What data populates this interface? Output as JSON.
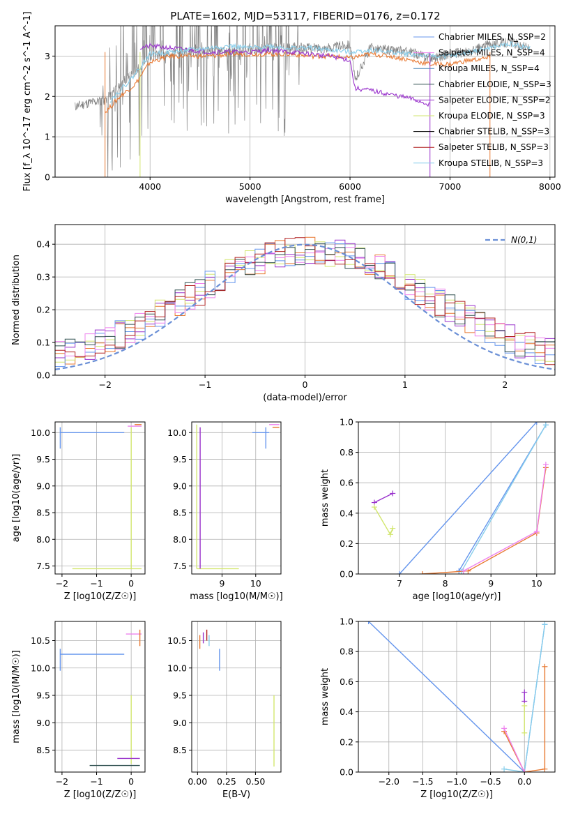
{
  "figure": {
    "title": "PLATE=1602, MJD=53117, FIBERID=0176, z=0.172"
  },
  "chart_data": [
    {
      "id": "spectrum",
      "type": "line",
      "title": "PLATE=1602, MJD=53117, FIBERID=0176, z=0.172",
      "xlabel": "wavelength [Angstrom, rest frame]",
      "ylabel": "Flux [f_λ 10^-17 erg cm^-2 s^-1 A^-1]",
      "xlim": [
        3050,
        8050
      ],
      "ylim": [
        0,
        3.75
      ],
      "xticks": [
        4000,
        5000,
        6000,
        7000,
        8000
      ],
      "yticks": [
        0,
        1,
        2,
        3
      ],
      "grid": true,
      "legend_position": "top-right",
      "legend": [
        {
          "label": "Chabrier MILES, N_SSP=2",
          "color": "#6495ed"
        },
        {
          "label": "Salpeter MILES, N_SSP=4",
          "color": "#ee82ee"
        },
        {
          "label": "Kroupa MILES, N_SSP=4",
          "color": "#4682b4"
        },
        {
          "label": "Chabrier ELODIE, N_SSP=3",
          "color": "#2f4f4f"
        },
        {
          "label": "Salpeter ELODIE, N_SSP=2",
          "color": "#9932cc"
        },
        {
          "label": "Kroupa ELODIE, N_SSP=3",
          "color": "#d2e66e"
        },
        {
          "label": "Chabrier STELIB, N_SSP=3",
          "color": "#000000"
        },
        {
          "label": "Salpeter STELIB, N_SSP=3",
          "color": "#b22222"
        },
        {
          "label": "Kroupa STELIB, N_SSP=3",
          "color": "#87ceeb"
        }
      ],
      "series": [
        {
          "name": "data",
          "color": "#808080",
          "x": [
            3250,
            3400,
            3550,
            3700,
            3850,
            4000,
            4200,
            4400,
            4600,
            4800,
            5000,
            5200,
            5400,
            5600,
            5800,
            6000,
            6050,
            6200,
            6400,
            6600,
            6800,
            7000,
            7200,
            7400,
            7600,
            7800
          ],
          "y": [
            1.75,
            1.85,
            1.9,
            2.3,
            2.6,
            3.0,
            3.05,
            3.1,
            3.15,
            3.1,
            3.15,
            3.2,
            3.2,
            3.2,
            3.2,
            3.3,
            2.4,
            3.2,
            3.15,
            3.1,
            2.95,
            3.05,
            3.1,
            3.3,
            3.35,
            3.2
          ]
        },
        {
          "name": "model MILES",
          "color": "#e87830",
          "x": [
            3550,
            3700,
            3850,
            4000,
            4200,
            4400,
            4600,
            4800,
            5000,
            5200,
            5400,
            5600,
            5800,
            6000,
            6200,
            6400,
            6600,
            6800,
            7000,
            7200,
            7400
          ],
          "y": [
            1.6,
            2.0,
            2.3,
            2.85,
            3.0,
            3.0,
            3.0,
            3.05,
            3.05,
            3.05,
            3.05,
            3.0,
            3.0,
            2.95,
            3.05,
            3.0,
            2.9,
            2.8,
            2.8,
            2.9,
            2.95
          ]
        },
        {
          "name": "model ELODIE",
          "color": "#9932cc",
          "x": [
            3900,
            4000,
            4200,
            4400,
            4600,
            4800,
            5000,
            5200,
            5400,
            5600,
            5800,
            6000,
            6050,
            6200,
            6400,
            6600,
            6800
          ],
          "y": [
            3.2,
            3.25,
            3.2,
            3.15,
            3.1,
            3.1,
            3.1,
            3.15,
            3.1,
            3.05,
            3.0,
            2.9,
            2.2,
            2.15,
            2.05,
            1.95,
            1.8
          ]
        },
        {
          "name": "model STELIB",
          "color": "#87ceeb",
          "x": [
            3600,
            3800,
            4000,
            4200,
            4400,
            4600,
            4800,
            5000,
            5200,
            5400,
            5600,
            5800,
            6000,
            6200,
            6400,
            6600,
            6800,
            7000,
            7200,
            7400,
            7600,
            7800
          ],
          "y": [
            1.9,
            2.4,
            3.05,
            3.1,
            3.15,
            3.2,
            3.25,
            3.2,
            3.25,
            3.2,
            3.2,
            3.15,
            3.1,
            3.15,
            3.1,
            3.05,
            3.0,
            3.0,
            3.1,
            3.2,
            3.3,
            3.2
          ]
        }
      ]
    },
    {
      "id": "residuals",
      "type": "area",
      "xlabel": "(data-model)/error",
      "ylabel": "Normed distribution",
      "xlim": [
        -2.5,
        2.5
      ],
      "ylim": [
        0,
        0.46
      ],
      "xticks": [
        -2,
        -1,
        0,
        1,
        2
      ],
      "yticks": [
        0.0,
        0.1,
        0.2,
        0.3,
        0.4
      ],
      "grid": true,
      "legend_position": "top-right",
      "legend": [
        {
          "label": "N(0,1)",
          "color": "#6a8fd6",
          "style": "dashed"
        }
      ],
      "histograms": [
        {
          "color": "#e87830",
          "seed": 1
        },
        {
          "color": "#9932cc",
          "seed": 2
        },
        {
          "color": "#d2e66e",
          "seed": 3
        },
        {
          "color": "#6495ed",
          "seed": 4
        },
        {
          "color": "#ee82ee",
          "seed": 5
        },
        {
          "color": "#2f4f4f",
          "seed": 6
        },
        {
          "color": "#b22222",
          "seed": 7
        }
      ]
    },
    {
      "id": "age_vs_Z",
      "type": "scatter",
      "xlabel": "Z [log10(Z/Z☉)]",
      "ylabel": "age  [log10(age/yr)]",
      "xlim": [
        -2.2,
        0.4
      ],
      "ylim": [
        7.35,
        10.2
      ],
      "xticks": [
        -2,
        -1,
        0
      ],
      "yticks": [
        7.5,
        8.0,
        8.5,
        9.0,
        9.5,
        10.0
      ],
      "grid": true,
      "series": [
        {
          "color": "#6495ed",
          "x": [
            -2.05,
            -0.2
          ],
          "y": [
            10.0,
            10.0
          ]
        },
        {
          "color": "#6495ed",
          "x": [
            -2.05,
            -2.05
          ],
          "y": [
            9.7,
            10.1
          ]
        },
        {
          "color": "#d2e66e",
          "x": [
            -1.7,
            0.3
          ],
          "y": [
            7.45,
            7.45
          ]
        },
        {
          "color": "#d2e66e",
          "x": [
            0.0,
            0.0
          ],
          "y": [
            7.45,
            10.1
          ]
        },
        {
          "color": "#e87830",
          "x": [
            0.1,
            0.3
          ],
          "y": [
            10.15,
            10.15
          ]
        },
        {
          "color": "#ee82ee",
          "x": [
            -0.1,
            0.3
          ],
          "y": [
            10.12,
            10.12
          ]
        }
      ]
    },
    {
      "id": "age_vs_mass",
      "type": "scatter",
      "xlabel": "mass [log10(M/M☉)]",
      "ylabel": "",
      "xlim": [
        8.1,
        10.75
      ],
      "ylim": [
        7.35,
        10.2
      ],
      "xticks": [
        9,
        10
      ],
      "yticks": [
        7.5,
        8.0,
        8.5,
        9.0,
        9.5,
        10.0
      ],
      "grid": true,
      "series": [
        {
          "color": "#6495ed",
          "x": [
            9.9,
            10.4
          ],
          "y": [
            10.0,
            10.0
          ]
        },
        {
          "color": "#6495ed",
          "x": [
            10.3,
            10.3
          ],
          "y": [
            9.7,
            10.1
          ]
        },
        {
          "color": "#d2e66e",
          "x": [
            8.25,
            9.5
          ],
          "y": [
            7.45,
            7.45
          ]
        },
        {
          "color": "#d2e66e",
          "x": [
            8.25,
            8.25
          ],
          "y": [
            7.45,
            10.15
          ]
        },
        {
          "color": "#9932cc",
          "x": [
            8.35,
            8.35
          ],
          "y": [
            7.45,
            10.1
          ]
        },
        {
          "color": "#e87830",
          "x": [
            10.5,
            10.7
          ],
          "y": [
            10.1,
            10.1
          ]
        },
        {
          "color": "#ee82ee",
          "x": [
            10.4,
            10.7
          ],
          "y": [
            10.15,
            10.15
          ]
        }
      ]
    },
    {
      "id": "mass_weight_vs_age",
      "type": "line",
      "xlabel": "age  [log10(age/yr)]",
      "ylabel": "mass weight",
      "xlim": [
        6.1,
        10.4
      ],
      "ylim": [
        0,
        1
      ],
      "xticks": [
        7,
        8,
        9,
        10
      ],
      "yticks": [
        0.0,
        0.2,
        0.4,
        0.6,
        0.8,
        1.0
      ],
      "grid": true,
      "series": [
        {
          "color": "#6495ed",
          "x": [
            7.0,
            10.0
          ],
          "y": [
            0.0,
            1.0
          ]
        },
        {
          "color": "#6495ed",
          "x": [
            8.3,
            10.2
          ],
          "y": [
            0.02,
            0.98
          ]
        },
        {
          "color": "#87ceeb",
          "x": [
            8.35,
            10.2
          ],
          "y": [
            0.015,
            0.98
          ]
        },
        {
          "color": "#e87830",
          "x": [
            7.5,
            8.5,
            10.0,
            10.2
          ],
          "y": [
            0.0,
            0.02,
            0.27,
            0.7
          ]
        },
        {
          "color": "#ee82ee",
          "x": [
            8.4,
            10.0,
            10.2
          ],
          "y": [
            0.02,
            0.28,
            0.72
          ]
        },
        {
          "color": "#9932cc",
          "x": [
            6.45,
            6.85
          ],
          "y": [
            0.47,
            0.53
          ]
        },
        {
          "color": "#d2e66e",
          "x": [
            6.45,
            6.8,
            6.85
          ],
          "y": [
            0.44,
            0.26,
            0.3
          ]
        }
      ]
    },
    {
      "id": "mass_vs_Z",
      "type": "scatter",
      "xlabel": "Z [log10(Z/Z☉)]",
      "ylabel": "mass [log10(M/M☉)]",
      "xlim": [
        -2.2,
        0.4
      ],
      "ylim": [
        8.1,
        10.85
      ],
      "xticks": [
        -2,
        -1,
        0
      ],
      "yticks": [
        8.5,
        9.0,
        9.5,
        10.0,
        10.5
      ],
      "grid": true,
      "series": [
        {
          "color": "#6495ed",
          "x": [
            -2.05,
            -0.2
          ],
          "y": [
            10.25,
            10.25
          ]
        },
        {
          "color": "#6495ed",
          "x": [
            -2.05,
            -2.05
          ],
          "y": [
            9.95,
            10.35
          ]
        },
        {
          "color": "#d2e66e",
          "x": [
            0.0,
            0.0
          ],
          "y": [
            8.25,
            9.5
          ]
        },
        {
          "color": "#2f4f4f",
          "x": [
            -1.2,
            0.25
          ],
          "y": [
            8.22,
            8.22
          ]
        },
        {
          "color": "#9932cc",
          "x": [
            -0.4,
            0.25
          ],
          "y": [
            8.35,
            8.35
          ]
        },
        {
          "color": "#ee82ee",
          "x": [
            -0.15,
            0.3
          ],
          "y": [
            10.62,
            10.62
          ]
        },
        {
          "color": "#e87830",
          "x": [
            0.25,
            0.25
          ],
          "y": [
            10.4,
            10.7
          ]
        }
      ]
    },
    {
      "id": "mass_vs_ebv",
      "type": "scatter",
      "xlabel": "E(B-V)",
      "ylabel": "",
      "xlim": [
        -0.05,
        0.72
      ],
      "ylim": [
        8.1,
        10.85
      ],
      "xticks": [
        0.0,
        0.25,
        0.5
      ],
      "yticks": [
        8.5,
        9.0,
        9.5,
        10.0,
        10.5
      ],
      "grid": true,
      "series": [
        {
          "color": "#6495ed",
          "x": [
            0.19,
            0.19
          ],
          "y": [
            9.95,
            10.35
          ]
        },
        {
          "color": "#d2e66e",
          "x": [
            0.66,
            0.66
          ],
          "y": [
            8.2,
            9.5
          ]
        },
        {
          "color": "#e87830",
          "x": [
            0.02,
            0.02
          ],
          "y": [
            10.35,
            10.6
          ]
        },
        {
          "color": "#9932cc",
          "x": [
            0.05,
            0.05
          ],
          "y": [
            10.45,
            10.65
          ]
        },
        {
          "color": "#b22222",
          "x": [
            0.08,
            0.08
          ],
          "y": [
            10.5,
            10.7
          ]
        },
        {
          "color": "#87ceeb",
          "x": [
            0.1,
            0.1
          ],
          "y": [
            10.4,
            10.6
          ]
        }
      ]
    },
    {
      "id": "mass_weight_vs_Z",
      "type": "line",
      "xlabel": "Z [log10(Z/Z☉)]",
      "ylabel": "mass weight",
      "xlim": [
        -2.45,
        0.45
      ],
      "ylim": [
        0,
        1
      ],
      "xticks": [
        -2.0,
        -1.5,
        -1.0,
        -0.5,
        0.0
      ],
      "yticks": [
        0.0,
        0.2,
        0.4,
        0.6,
        0.8,
        1.0
      ],
      "grid": true,
      "series": [
        {
          "color": "#6495ed",
          "x": [
            -2.3,
            0.0,
            0.3
          ],
          "y": [
            1.0,
            0.0,
            0.98
          ]
        },
        {
          "color": "#87ceeb",
          "x": [
            -0.3,
            0.0,
            0.3
          ],
          "y": [
            0.02,
            0.0,
            0.98
          ]
        },
        {
          "color": "#e87830",
          "x": [
            -0.3,
            0.0,
            0.3,
            0.3
          ],
          "y": [
            0.27,
            0.0,
            0.02,
            0.7
          ]
        },
        {
          "color": "#ee82ee",
          "x": [
            -0.3,
            0.0
          ],
          "y": [
            0.29,
            0.0
          ]
        },
        {
          "color": "#9932cc",
          "x": [
            0.0,
            0.0
          ],
          "y": [
            0.47,
            0.53
          ]
        },
        {
          "color": "#d2e66e",
          "x": [
            0.0,
            0.0
          ],
          "y": [
            0.26,
            0.44
          ]
        }
      ]
    }
  ]
}
